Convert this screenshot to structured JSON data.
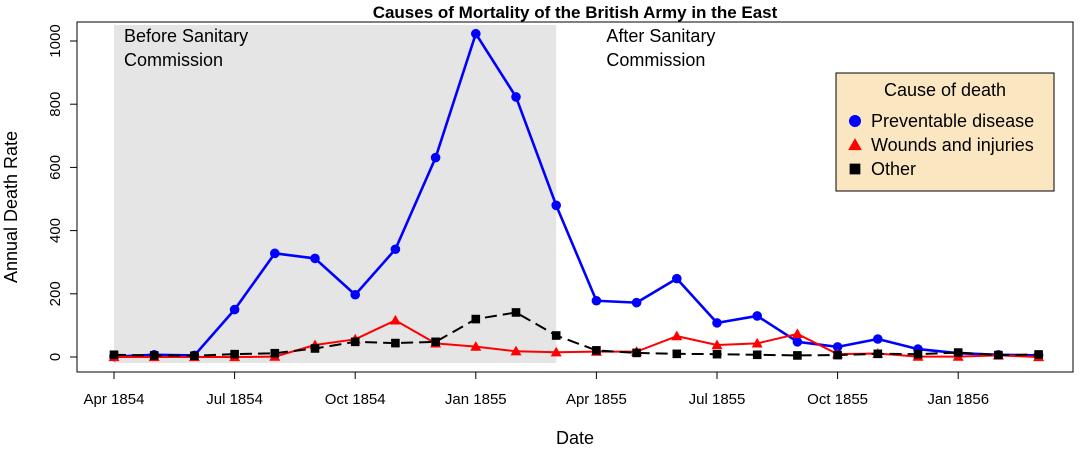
{
  "chart_data": {
    "type": "line",
    "title": "Causes of Mortality of the British Army in the East",
    "xlabel": "Date",
    "ylabel": "Annual Death Rate",
    "x": [
      "1854-04",
      "1854-05",
      "1854-06",
      "1854-07",
      "1854-08",
      "1854-09",
      "1854-10",
      "1854-11",
      "1854-12",
      "1855-01",
      "1855-02",
      "1855-03",
      "1855-04",
      "1855-05",
      "1855-06",
      "1855-07",
      "1855-08",
      "1855-09",
      "1855-10",
      "1855-11",
      "1855-12",
      "1856-01",
      "1856-02",
      "1856-03"
    ],
    "x_ticks": [
      {
        "date": "1854-04",
        "label": "Apr 1854"
      },
      {
        "date": "1854-07",
        "label": "Jul 1854"
      },
      {
        "date": "1854-10",
        "label": "Oct 1854"
      },
      {
        "date": "1855-01",
        "label": "Jan 1855"
      },
      {
        "date": "1855-04",
        "label": "Apr 1855"
      },
      {
        "date": "1855-07",
        "label": "Jul 1855"
      },
      {
        "date": "1855-10",
        "label": "Oct 1855"
      },
      {
        "date": "1856-01",
        "label": "Jan 1856"
      }
    ],
    "y_ticks": [
      0,
      200,
      400,
      600,
      800,
      1000
    ],
    "ylim": [
      0,
      1040
    ],
    "series": [
      {
        "name": "Preventable disease",
        "color": "#0000FF",
        "marker": "circle",
        "values": [
          1,
          7,
          5,
          150,
          328,
          312,
          197,
          341,
          631,
          1023,
          823,
          480,
          178,
          172,
          248,
          108,
          130,
          48,
          32,
          57,
          25,
          12,
          7,
          5
        ]
      },
      {
        "name": "Wounds and injuries",
        "color": "#FF0000",
        "marker": "triangle",
        "values": [
          0,
          0,
          0,
          0,
          1,
          38,
          56,
          116,
          43,
          33,
          18,
          15,
          17,
          17,
          66,
          38,
          43,
          73,
          9,
          11,
          1,
          1,
          5,
          0
        ]
      },
      {
        "name": "Other",
        "color": "#000000",
        "marker": "square",
        "values": [
          7,
          5,
          4,
          9,
          12,
          27,
          48,
          44,
          48,
          120,
          141,
          68,
          21,
          13,
          10,
          9,
          7,
          5,
          6,
          10,
          9,
          14,
          6,
          8
        ]
      }
    ],
    "shaded_region": {
      "from": "1854-04",
      "to": "1855-03",
      "color": "#E5E5E5"
    },
    "annotations": [
      {
        "lines": [
          "Before Sanitary",
          "Commission"
        ],
        "date": "1854-04"
      },
      {
        "lines": [
          "After Sanitary",
          "Commission"
        ],
        "date": "1855-04"
      }
    ],
    "legend": {
      "title": "Cause of death",
      "placement": "top-right",
      "background": "#FAE6C0"
    }
  }
}
